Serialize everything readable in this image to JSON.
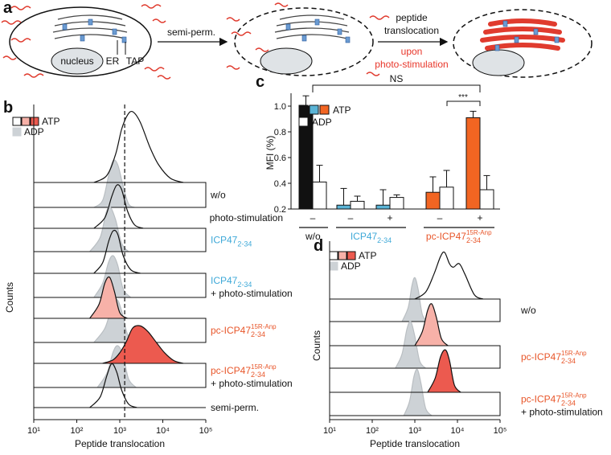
{
  "panel_a": {
    "label": "a",
    "step1": "semi-perm.",
    "step2": [
      "peptide",
      "translocation"
    ],
    "step3": [
      "upon",
      "photo-stimulation"
    ],
    "labels": [
      "nucleus",
      "ER",
      "TAP"
    ]
  },
  "chart_data": [
    {
      "type": "ridgeline",
      "panel": "b",
      "xlabel": "Peptide translocation",
      "ylabel": "Counts",
      "xscale": "log",
      "xlim": [
        10,
        100000
      ],
      "xticks": [
        {
          "value": 10,
          "label": "10¹"
        },
        {
          "value": 100,
          "label": "10²"
        },
        {
          "value": 1000,
          "label": "10³"
        },
        {
          "value": 10000,
          "label": "10⁴"
        },
        {
          "value": 100000,
          "label": "10⁵"
        }
      ],
      "marker_x": 1300,
      "legend": [
        {
          "label": "ATP",
          "colors": [
            "#ffffff",
            "#f7b1a8",
            "#ec5a4f"
          ]
        },
        {
          "label": "ADP",
          "colors": [
            "#cdd2d6"
          ]
        }
      ],
      "rows": [
        {
          "label": {
            "main": "w/o"
          },
          "color": "#111111",
          "atp": {
            "color": "#ffffff",
            "x": [
              250,
              500,
              800,
              1100,
              1500,
              2000,
              3000,
              5000,
              8000,
              15000,
              30000
            ],
            "values": [
              0,
              0.1,
              0.4,
              0.75,
              0.95,
              1.0,
              0.85,
              0.5,
              0.25,
              0.06,
              0
            ]
          },
          "adp": {
            "color": "#cdd2d6",
            "x": [
              250,
              400,
              550,
              700,
              900,
              1200,
              1600,
              2200
            ],
            "values": [
              0,
              0.1,
              0.45,
              0.66,
              0.6,
              0.3,
              0.05,
              0
            ]
          }
        },
        {
          "label": {
            "main": "ICP47",
            "sub": "2-34"
          },
          "color": "#3fa9d8",
          "atp": {
            "color": "#ffffff",
            "x": [
              250,
              450,
              650,
              850,
              1100,
              1500,
              2200,
              3500
            ],
            "values": [
              0,
              0.15,
              0.45,
              0.61,
              0.55,
              0.25,
              0.05,
              0
            ]
          },
          "adp": {
            "color": "#cdd2d6",
            "x": [
              200,
              350,
              480,
              600,
              800,
              1100,
              1600
            ],
            "values": [
              0,
              0.2,
              0.55,
              0.63,
              0.45,
              0.12,
              0
            ]
          }
        },
        {
          "label": {
            "main": "ICP47",
            "sub": "2-34"
          },
          "line2": "+ photo-stimulation",
          "color": "#3fa9d8",
          "atp": {
            "color": "#ffffff",
            "x": [
              250,
              400,
              550,
              700,
              900,
              1200,
              1800,
              3000
            ],
            "values": [
              0,
              0.15,
              0.45,
              0.6,
              0.55,
              0.25,
              0.05,
              0
            ]
          },
          "adp": {
            "color": "#cdd2d6",
            "x": [
              250,
              400,
              550,
              700,
              900,
              1200,
              1800
            ],
            "values": [
              0,
              0.2,
              0.5,
              0.59,
              0.45,
              0.12,
              0
            ]
          }
        },
        {
          "label": {
            "main": "pc-ICP47",
            "sub": "2-34",
            "sup": "15R-Anp"
          },
          "color": "#e8562a",
          "atp": {
            "color": "#f7b1a8",
            "x": [
              200,
              330,
              450,
              580,
              750,
              1000,
              1500
            ],
            "values": [
              0,
              0.2,
              0.5,
              0.58,
              0.38,
              0.08,
              0
            ]
          },
          "adp": {
            "color": "#cdd2d6",
            "x": [
              250,
              450,
              650,
              850,
              1100,
              1500,
              2200
            ],
            "values": [
              0,
              0.2,
              0.5,
              0.61,
              0.45,
              0.12,
              0
            ]
          }
        },
        {
          "label": {
            "main": "pc-ICP47",
            "sub": "2-34",
            "sup": "15R-Anp"
          },
          "line2": "+ photo-stimulation",
          "color": "#e8562a",
          "atp": {
            "color": "#ec5a4f",
            "x": [
              400,
              700,
              1000,
              1400,
              2000,
              3000,
              4500,
              7000,
              11000,
              18000,
              30000
            ],
            "values": [
              0,
              0.05,
              0.15,
              0.3,
              0.5,
              0.53,
              0.45,
              0.3,
              0.15,
              0.04,
              0
            ]
          },
          "adp": {
            "color": "#cdd2d6",
            "x": [
              300,
              500,
              700,
              900,
              1200,
              1600,
              2400
            ],
            "values": [
              0,
              0.2,
              0.5,
              0.59,
              0.45,
              0.12,
              0
            ]
          }
        },
        {
          "label": {
            "main": "semi-perm."
          },
          "color": "#111111",
          "atp": {
            "color": "#ffffff",
            "x": [
              200,
              350,
              500,
              650,
              850,
              1100,
              1600,
              2500
            ],
            "values": [
              0,
              0.15,
              0.45,
              0.62,
              0.5,
              0.25,
              0.05,
              0
            ]
          }
        }
      ]
    },
    {
      "type": "bar",
      "panel": "c",
      "ylabel": "MFI (%)",
      "ylim": [
        0.2,
        1.1
      ],
      "yticks": [
        0.2,
        0.4,
        0.6,
        0.8,
        {
          "value": 1,
          "label": "1.0"
        }
      ],
      "stim_label": "photo-stimulation",
      "stim": [
        "–",
        "–",
        "+",
        "–",
        "+"
      ],
      "groups": [
        {
          "label": {
            "main": "w/o"
          },
          "color": "#111111"
        },
        {
          "label": {
            "main": "ICP47",
            "sub": "2-34"
          },
          "color": "#3fa9d8"
        },
        {
          "label": {
            "main": "pc-ICP47",
            "sub": "2-34",
            "sup": "15R-Anp"
          },
          "color": "#e8562a"
        }
      ],
      "series": [
        {
          "name": "ATP",
          "colors": [
            "#111111",
            "#5ab4d6",
            "#5ab4d6",
            "#f26522",
            "#f26522"
          ],
          "values": [
            1.0,
            0.23,
            0.23,
            0.33,
            0.91
          ],
          "errors": [
            0.08,
            0.13,
            0.12,
            0.12,
            0.05
          ]
        },
        {
          "name": "ADP",
          "color": "#ffffff",
          "values": [
            0.41,
            0.26,
            0.29,
            0.37,
            0.35
          ],
          "errors": [
            0.13,
            0.04,
            0.02,
            0.13,
            0.11
          ]
        }
      ],
      "annotations": [
        "NS",
        "***"
      ]
    },
    {
      "type": "ridgeline",
      "panel": "d",
      "xlabel": "Peptide translocation",
      "ylabel": "Counts",
      "xscale": "log",
      "xlim": [
        10,
        100000
      ],
      "xticks": [
        {
          "value": 10,
          "label": "10¹"
        },
        {
          "value": 100,
          "label": "10²"
        },
        {
          "value": 1000,
          "label": "10³"
        },
        {
          "value": 10000,
          "label": "10⁴"
        },
        {
          "value": 100000,
          "label": "10⁵"
        }
      ],
      "legend": [
        {
          "label": "ATP",
          "colors": [
            "#ffffff",
            "#f7b1a8",
            "#ec5a4f"
          ]
        },
        {
          "label": "ADP",
          "colors": [
            "#cdd2d6"
          ]
        }
      ],
      "rows": [
        {
          "label": {
            "main": "w/o"
          },
          "color": "#111111",
          "atp": {
            "color": "#ffffff",
            "x": [
              1000,
              1800,
              2800,
              4000,
              5000,
              6500,
              8000,
              11000,
              15000,
              25000,
              40000
            ],
            "values": [
              0,
              0.1,
              0.35,
              0.6,
              0.66,
              0.5,
              0.45,
              0.5,
              0.35,
              0.06,
              0
            ]
          },
          "adp": {
            "color": "#cdd2d6",
            "x": [
              500,
              700,
              850,
              1000,
              1200,
              1500,
              2000
            ],
            "values": [
              0,
              0.2,
              0.5,
              0.62,
              0.45,
              0.1,
              0
            ]
          }
        },
        {
          "label": {
            "main": "pc-ICP47",
            "sub": "2-34",
            "sup": "15R-Anp"
          },
          "color": "#e8562a",
          "atp": {
            "color": "#f7b1a8",
            "x": [
              1000,
              1500,
              2000,
              2500,
              3200,
              4200,
              6000
            ],
            "values": [
              0,
              0.2,
              0.5,
              0.59,
              0.4,
              0.1,
              0
            ]
          },
          "adp": {
            "color": "#cdd2d6",
            "x": [
              350,
              500,
              650,
              800,
              1000,
              1300,
              1800
            ],
            "values": [
              0,
              0.2,
              0.55,
              0.66,
              0.45,
              0.1,
              0
            ]
          }
        },
        {
          "label": {
            "main": "pc-ICP47",
            "sub": "2-34",
            "sup": "15R-Anp"
          },
          "line2": "+ photo-stimulation",
          "color": "#e8562a",
          "atp": {
            "color": "#ec5a4f",
            "x": [
              2000,
              3000,
              4000,
              5200,
              6500,
              8500,
              12000
            ],
            "values": [
              0,
              0.2,
              0.5,
              0.6,
              0.45,
              0.1,
              0
            ]
          },
          "adp": {
            "color": "#cdd2d6",
            "x": [
              550,
              750,
              950,
              1150,
              1400,
              1800,
              2500
            ],
            "values": [
              0,
              0.2,
              0.55,
              0.65,
              0.45,
              0.1,
              0
            ]
          }
        }
      ]
    }
  ]
}
